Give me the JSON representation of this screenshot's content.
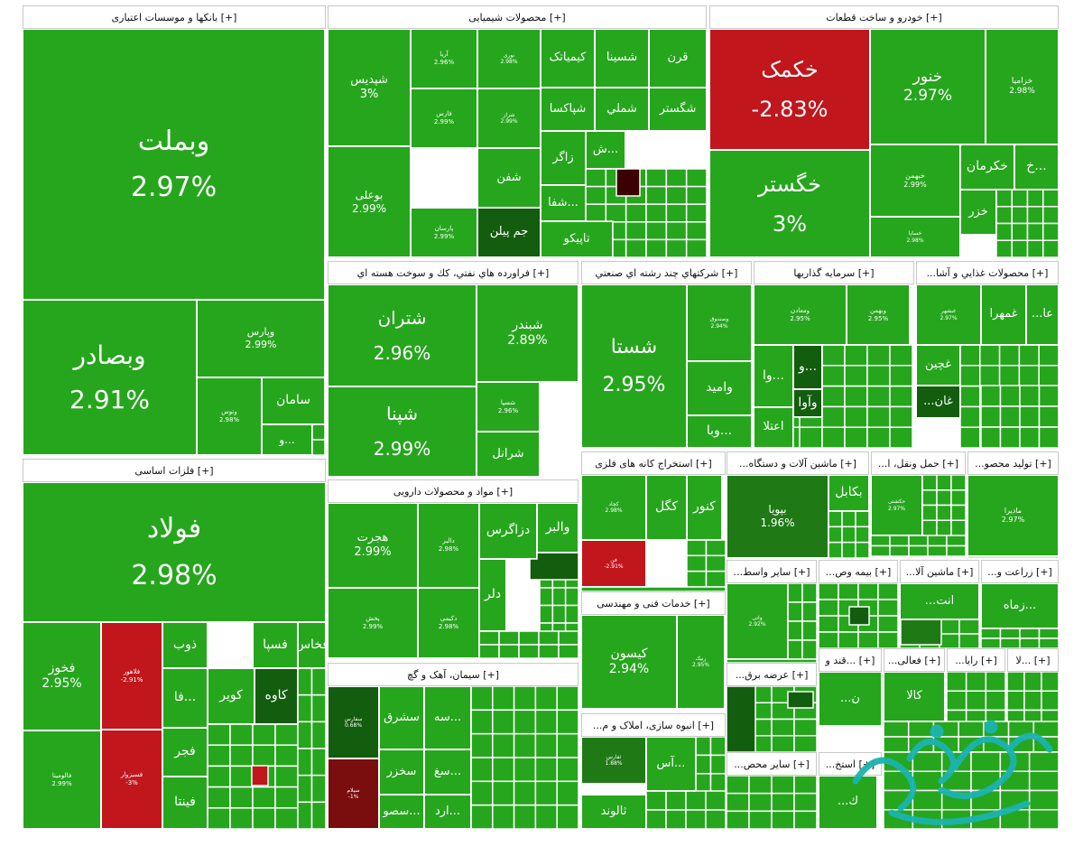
{
  "colors": {
    "green": "#26a61d",
    "dark_green": "#1f7a16",
    "darker_green": "#135d0e",
    "dark_red": "#7a0e0e",
    "red": "#c0161c",
    "maroon": "#3c0004"
  },
  "watermark": {
    "text": "صفحه اقتصاد"
  },
  "chart_data": {
    "type": "treemap",
    "sectors": [
      {
        "title": "[+] بانکها و موسسات اعتباری",
        "cells": [
          {
            "name": "وبملت",
            "value": "2.97%",
            "change": 2.97
          },
          {
            "name": "وبصادر",
            "value": "2.91%",
            "change": 2.91
          },
          {
            "name": "وپارس",
            "value": "2.99%",
            "change": 2.99
          },
          {
            "name": "سامان",
            "value": "",
            "change": 3
          },
          {
            "name": "وتوس",
            "value": "2.98%",
            "change": 2.98
          },
          {
            "name": "و...",
            "value": "",
            "change": 3
          }
        ]
      },
      {
        "title": "[+] محصولات شیمیایی",
        "cells": [
          {
            "name": "شپدیس",
            "value": "3%",
            "change": 3
          },
          {
            "name": "بوعلی",
            "value": "2.99%",
            "change": 2.99
          },
          {
            "name": "آریا",
            "value": "2.96%",
            "change": 2.96
          },
          {
            "name": "فارس",
            "value": "2.99%",
            "change": 2.99
          },
          {
            "name": "پارسان",
            "value": "2.99%",
            "change": 2.99
          },
          {
            "name": "نوری",
            "value": "2.98%",
            "change": 2.98
          },
          {
            "name": "شراز",
            "value": "2.99%",
            "change": 2.99
          },
          {
            "name": "شفن",
            "value": "",
            "change": 3
          },
          {
            "name": "جم پیلن",
            "value": "",
            "change": 1.5
          },
          {
            "name": "کیمیاتک",
            "value": "",
            "change": 3
          },
          {
            "name": "شسینا",
            "value": "",
            "change": 3
          },
          {
            "name": "قرن",
            "value": "",
            "change": 3
          },
          {
            "name": "شپاکسا",
            "value": "",
            "change": 3
          },
          {
            "name": "شملي",
            "value": "",
            "change": 3
          },
          {
            "name": "شگستر",
            "value": "",
            "change": 3
          },
          {
            "name": "زاگر",
            "value": "",
            "change": 3
          },
          {
            "name": "ش...",
            "value": "",
            "change": 3
          },
          {
            "name": "شفا...",
            "value": "",
            "change": 3
          },
          {
            "name": "تاپیکو",
            "value": "",
            "change": 3
          }
        ]
      },
      {
        "title": "[+] خودرو و ساخت قطعات",
        "cells": [
          {
            "name": "خکمک",
            "value": "-2.83%",
            "change": -2.83
          },
          {
            "name": "خگستر",
            "value": "3%",
            "change": 3
          },
          {
            "name": "خنور",
            "value": "2.97%",
            "change": 2.97
          },
          {
            "name": "خزامیا",
            "value": "2.98%",
            "change": 2.98
          },
          {
            "name": "خبهمن",
            "value": "2.99%",
            "change": 2.99
          },
          {
            "name": "خساپا",
            "value": "2.98%",
            "change": 2.98
          },
          {
            "name": "خکرمان",
            "value": "",
            "change": 3
          },
          {
            "name": "خ...",
            "value": "",
            "change": 3
          },
          {
            "name": "خزر",
            "value": "",
            "change": 3
          }
        ]
      },
      {
        "title": "[+] فراورده هاي نفتي، كك و سوخت هسته اي",
        "cells": [
          {
            "name": "شتران",
            "value": "2.96%",
            "change": 2.96
          },
          {
            "name": "شپنا",
            "value": "2.99%",
            "change": 2.99
          },
          {
            "name": "شبندر",
            "value": "2.89%",
            "change": 2.89
          },
          {
            "name": "شسپا",
            "value": "2.96%",
            "change": 2.96
          },
          {
            "name": "شرانل",
            "value": "",
            "change": 3
          }
        ]
      },
      {
        "title": "[+] شرکتهاي چند رشته اي صنعتي",
        "cells": [
          {
            "name": "شستا",
            "value": "2.95%",
            "change": 2.95
          },
          {
            "name": "وصندوق",
            "value": "2.94%",
            "change": 2.94
          },
          {
            "name": "وامید",
            "value": "",
            "change": 3
          },
          {
            "name": "وبا...",
            "value": "",
            "change": 3
          }
        ]
      },
      {
        "title": "[+] سرمايه گذاريها",
        "cells": [
          {
            "name": "ومعادن",
            "value": "2.95%",
            "change": 2.95
          },
          {
            "name": "وبهمن",
            "value": "2.95%",
            "change": 2.95
          },
          {
            "name": "وا...",
            "value": "",
            "change": 3
          },
          {
            "name": "و...",
            "value": "",
            "change": 1.2
          },
          {
            "name": "وآوا",
            "value": "",
            "change": 1.4
          },
          {
            "name": "اعتلا",
            "value": "",
            "change": 3
          }
        ]
      },
      {
        "title": "[+] محصولات غذايي و آشا...",
        "cells": [
          {
            "name": "غبشهر",
            "value": "2.97%",
            "change": 2.97
          },
          {
            "name": "غمهرا",
            "value": "",
            "change": 3
          },
          {
            "name": "...عا",
            "value": "",
            "change": 3
          },
          {
            "name": "غچين",
            "value": "",
            "change": 3
          },
          {
            "name": "...غان",
            "value": "",
            "change": 1.3
          }
        ]
      },
      {
        "title": "[+] فلزات اساسی",
        "cells": [
          {
            "name": "فولاد",
            "value": "2.98%",
            "change": 2.98
          },
          {
            "name": "فخوز",
            "value": "2.95%",
            "change": 2.95
          },
          {
            "name": "فلاهور",
            "value": "-2.91%",
            "change": -2.91
          },
          {
            "name": "فسبزوار",
            "value": "-3%",
            "change": -3
          },
          {
            "name": "فخاس",
            "value": "",
            "change": 3
          },
          {
            "name": "فسپا",
            "value": "",
            "change": 3
          },
          {
            "name": "ذوب",
            "value": "",
            "change": 3
          },
          {
            "name": "فا...",
            "value": "",
            "change": 3
          },
          {
            "name": "کویر",
            "value": "",
            "change": 3
          },
          {
            "name": "کاوه",
            "value": "",
            "change": 1.4
          },
          {
            "name": "فجر",
            "value": "",
            "change": 3
          },
          {
            "name": "فینتا",
            "value": "",
            "change": 3
          },
          {
            "name": "فالومینا",
            "value": "2.99%",
            "change": 2.99
          }
        ]
      },
      {
        "title": "[+] مواد و محصولات دارویی",
        "cells": [
          {
            "name": "هجرت",
            "value": "2.99%",
            "change": 2.99
          },
          {
            "name": "پخش",
            "value": "2.99%",
            "change": 2.99
          },
          {
            "name": "دالبر",
            "value": "2.98%",
            "change": 2.98
          },
          {
            "name": "دکیمی",
            "value": "2.98%",
            "change": 2.98
          },
          {
            "name": "دزاگرس",
            "value": "",
            "change": 3
          },
          {
            "name": "والبر",
            "value": "",
            "change": 3
          },
          {
            "name": "دلر",
            "value": "",
            "change": 3
          }
        ]
      },
      {
        "title": "[+] استخراج کانه های فلزی",
        "cells": [
          {
            "name": "کچاد",
            "value": "2.98%",
            "change": 2.98
          },
          {
            "name": "کگل",
            "value": "",
            "change": 3
          },
          {
            "name": "کنور",
            "value": "",
            "change": 3
          },
          {
            "name": "فن",
            "value": "-2.91%",
            "change": -2.91
          }
        ]
      },
      {
        "title": "[+] ماشین آلات و دستگاه...",
        "cells": [
          {
            "name": "بپویا",
            "value": "1.96%",
            "change": 1.96
          },
          {
            "name": "بکابل",
            "value": "",
            "change": 3
          }
        ]
      },
      {
        "title": "[+] حمل ونقل، ا...",
        "cells": [
          {
            "name": "حکشتی",
            "value": "2.97%",
            "change": 2.97
          }
        ]
      },
      {
        "title": "[+] تولید محصو...",
        "cells": [
          {
            "name": "مادیرا",
            "value": "2.97%",
            "change": 2.97
          }
        ]
      },
      {
        "title": "[+] خدمات فنی و مهندسی",
        "cells": [
          {
            "name": "کیسون",
            "value": "2.94%",
            "change": 2.94
          },
          {
            "name": "رنیک",
            "value": "2.95%",
            "change": 2.95
          }
        ]
      },
      {
        "title": "[+] سیمان، آهک و گچ",
        "cells": [
          {
            "name": "سفارس",
            "value": "0.68%",
            "change": 0.68
          },
          {
            "name": "سیلام",
            "value": "-1%",
            "change": -1
          },
          {
            "name": "سشرق",
            "value": "",
            "change": 3
          },
          {
            "name": "سخزر",
            "value": "",
            "change": 3
          },
          {
            "name": "سصو...",
            "value": "",
            "change": 3
          },
          {
            "name": "سه...",
            "value": "",
            "change": 3
          },
          {
            "name": "سغ...",
            "value": "",
            "change": 3
          },
          {
            "name": "ارد...",
            "value": "",
            "change": 3
          }
        ]
      },
      {
        "title": "[+] انبوه سازی، املاک و م...",
        "cells": [
          {
            "name": "ثفارس",
            "value": "1.88%",
            "change": 1.88
          },
          {
            "name": "آس...",
            "value": "",
            "change": 3
          },
          {
            "name": "ثالوند",
            "value": "",
            "change": 3
          }
        ]
      },
      {
        "title": "[+] سایر واسط...",
        "cells": [
          {
            "name": "واتی",
            "value": "2.92%",
            "change": 2.92
          }
        ]
      },
      {
        "title": "[+] بیمه وص...",
        "cells": []
      },
      {
        "title": "[+] ماشین آلا...",
        "cells": [
          {
            "name": "...انت",
            "value": "",
            "change": 3
          }
        ]
      },
      {
        "title": "[+] زراعت و...",
        "cells": [
          {
            "name": "زماه...",
            "value": "",
            "change": 3
          }
        ]
      },
      {
        "title": "[+] عرضه برق...",
        "cells": []
      },
      {
        "title": "[+] ...قند و",
        "cells": [
          {
            "name": "...ن",
            "value": "",
            "change": 3
          }
        ]
      },
      {
        "title": "[+] فعالی...",
        "cells": [
          {
            "name": "کالا",
            "value": "",
            "change": 3
          }
        ]
      },
      {
        "title": "[+] رایا...",
        "cells": []
      },
      {
        "title": "[+] ...لا",
        "cells": []
      },
      {
        "title": "[+] سایر محص...",
        "cells": []
      },
      {
        "title": "[+] استخ...",
        "cells": [
          {
            "name": "...ك",
            "value": "",
            "change": 3
          }
        ]
      }
    ]
  }
}
